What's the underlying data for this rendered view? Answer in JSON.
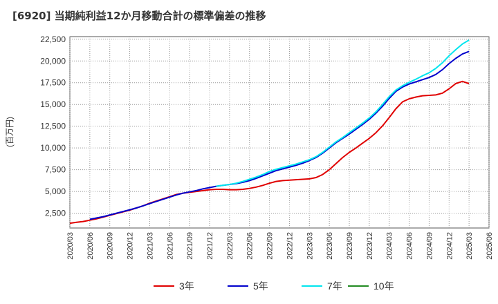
{
  "chart_data": {
    "type": "line",
    "title": "[6920]  当期純利益12か月移動合計の標準偏差の推移",
    "ylabel": "(百万円)",
    "xlabel": "",
    "ylim": [
      800,
      22800
    ],
    "yticks": [
      2500,
      5000,
      7500,
      10000,
      12500,
      15000,
      17500,
      20000,
      22500
    ],
    "ytick_labels": [
      "2,500",
      "5,000",
      "7,500",
      "10,000",
      "12,500",
      "15,000",
      "17,500",
      "20,000",
      "22,500"
    ],
    "xticks": [
      "2020/03",
      "2020/06",
      "2020/09",
      "2020/12",
      "2021/03",
      "2021/06",
      "2021/09",
      "2021/12",
      "2022/03",
      "2022/06",
      "2022/09",
      "2022/12",
      "2023/03",
      "2023/06",
      "2023/09",
      "2023/12",
      "2024/03",
      "2024/06",
      "2024/09",
      "2024/12",
      "2025/03",
      "2025/06"
    ],
    "grid": true,
    "legend_position": "bottom",
    "series": [
      {
        "name": "3年",
        "color": "#e00000",
        "x": [
          "2020/03",
          "2020/04",
          "2020/05",
          "2020/06",
          "2020/07",
          "2020/08",
          "2020/09",
          "2020/10",
          "2020/11",
          "2020/12",
          "2021/01",
          "2021/02",
          "2021/03",
          "2021/04",
          "2021/05",
          "2021/06",
          "2021/07",
          "2021/08",
          "2021/09",
          "2021/10",
          "2021/11",
          "2021/12",
          "2022/01",
          "2022/02",
          "2022/03",
          "2022/04",
          "2022/05",
          "2022/06",
          "2022/07",
          "2022/08",
          "2022/09",
          "2022/10",
          "2022/11",
          "2022/12",
          "2023/01",
          "2023/02",
          "2023/03",
          "2023/04",
          "2023/05",
          "2023/06",
          "2023/07",
          "2023/08",
          "2023/09",
          "2023/10",
          "2023/11",
          "2023/12",
          "2024/01",
          "2024/02",
          "2024/03",
          "2024/04",
          "2024/05",
          "2024/06",
          "2024/07",
          "2024/08",
          "2024/09",
          "2024/10",
          "2024/11",
          "2024/12",
          "2025/01",
          "2025/02",
          "2025/03"
        ],
        "values": [
          1350,
          1450,
          1550,
          1700,
          1850,
          2050,
          2250,
          2450,
          2650,
          2850,
          3100,
          3350,
          3650,
          3900,
          4150,
          4400,
          4650,
          4800,
          4900,
          5000,
          5100,
          5200,
          5250,
          5250,
          5200,
          5200,
          5250,
          5350,
          5500,
          5700,
          5950,
          6150,
          6250,
          6300,
          6350,
          6400,
          6450,
          6600,
          6950,
          7500,
          8200,
          8900,
          9500,
          10000,
          10550,
          11100,
          11750,
          12550,
          13500,
          14500,
          15300,
          15650,
          15850,
          16000,
          16050,
          16100,
          16300,
          16800,
          17400,
          17650,
          17400
        ]
      },
      {
        "name": "5年",
        "color": "#0000cc",
        "x": [
          "2020/06",
          "2020/07",
          "2020/08",
          "2020/09",
          "2020/10",
          "2020/11",
          "2020/12",
          "2021/01",
          "2021/02",
          "2021/03",
          "2021/04",
          "2021/05",
          "2021/06",
          "2021/07",
          "2021/08",
          "2021/09",
          "2021/10",
          "2021/11",
          "2021/12",
          "2022/01",
          "2022/02",
          "2022/03",
          "2022/04",
          "2022/05",
          "2022/06",
          "2022/07",
          "2022/08",
          "2022/09",
          "2022/10",
          "2022/11",
          "2022/12",
          "2023/01",
          "2023/02",
          "2023/03",
          "2023/04",
          "2023/05",
          "2023/06",
          "2023/07",
          "2023/08",
          "2023/09",
          "2023/10",
          "2023/11",
          "2023/12",
          "2024/01",
          "2024/02",
          "2024/03",
          "2024/04",
          "2024/05",
          "2024/06",
          "2024/07",
          "2024/08",
          "2024/09",
          "2024/10",
          "2024/11",
          "2024/12",
          "2025/01",
          "2025/02",
          "2025/03"
        ],
        "values": [
          1800,
          1950,
          2100,
          2300,
          2500,
          2700,
          2900,
          3100,
          3350,
          3600,
          3850,
          4100,
          4350,
          4600,
          4800,
          4950,
          5100,
          5300,
          5450,
          5600,
          5700,
          5800,
          5900,
          6050,
          6250,
          6500,
          6800,
          7100,
          7400,
          7600,
          7800,
          8000,
          8250,
          8550,
          8900,
          9400,
          10000,
          10600,
          11100,
          11600,
          12150,
          12700,
          13300,
          14000,
          14800,
          15700,
          16500,
          17000,
          17350,
          17600,
          17850,
          18100,
          18450,
          19000,
          19700,
          20300,
          20800,
          21100
        ]
      },
      {
        "name": "7年",
        "color": "#00e5ee",
        "x": [
          "2022/01",
          "2022/02",
          "2022/03",
          "2022/04",
          "2022/05",
          "2022/06",
          "2022/07",
          "2022/08",
          "2022/09",
          "2022/10",
          "2022/11",
          "2022/12",
          "2023/01",
          "2023/02",
          "2023/03",
          "2023/04",
          "2023/05",
          "2023/06",
          "2023/07",
          "2023/08",
          "2023/09",
          "2023/10",
          "2023/11",
          "2023/12",
          "2024/01",
          "2024/02",
          "2024/03",
          "2024/04",
          "2024/05",
          "2024/06",
          "2024/07",
          "2024/08",
          "2024/09",
          "2024/10",
          "2024/11",
          "2024/12",
          "2025/01",
          "2025/02",
          "2025/03"
        ],
        "values": [
          5600,
          5700,
          5800,
          5950,
          6150,
          6400,
          6650,
          6950,
          7300,
          7550,
          7750,
          7950,
          8150,
          8400,
          8650,
          9000,
          9500,
          10100,
          10700,
          11200,
          11750,
          12300,
          12850,
          13450,
          14150,
          15000,
          15900,
          16650,
          17150,
          17550,
          17900,
          18300,
          18650,
          19150,
          19800,
          20600,
          21300,
          21950,
          22400
        ]
      },
      {
        "name": "10年",
        "color": "#228b22",
        "x": [],
        "values": []
      }
    ]
  }
}
